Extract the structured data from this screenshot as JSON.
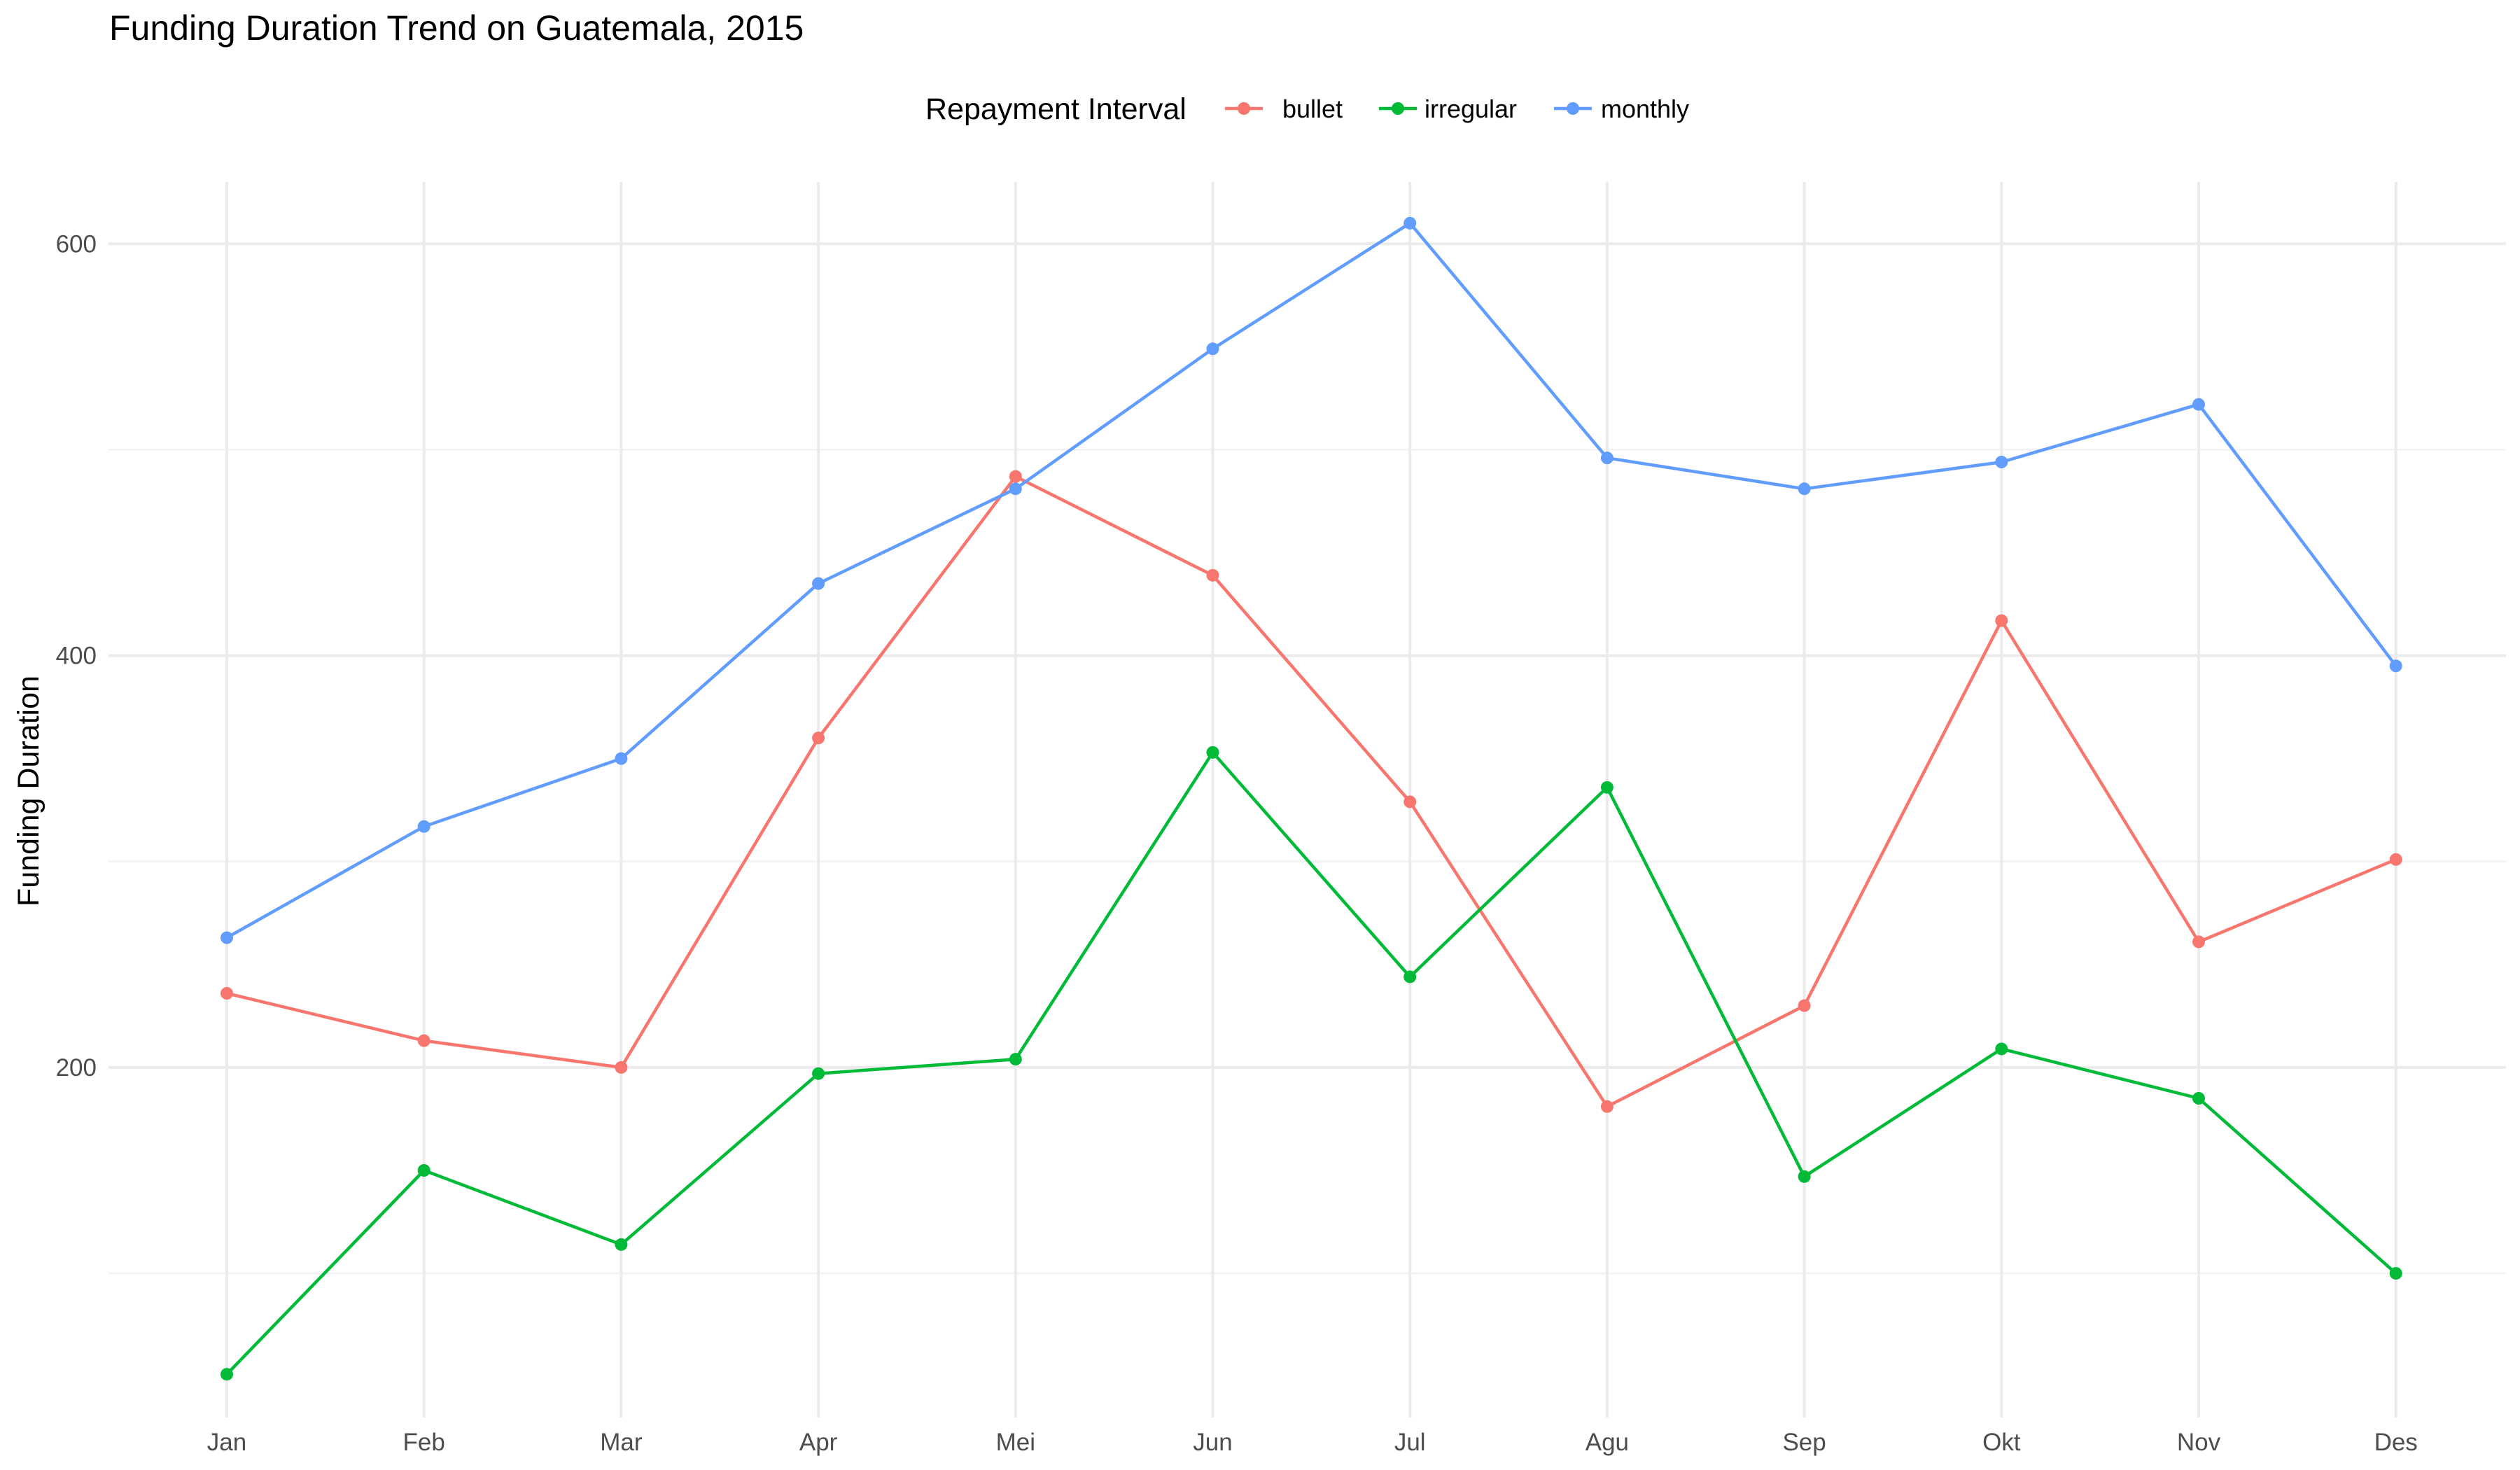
{
  "chart_data": {
    "type": "line",
    "title": "Funding Duration Trend on Guatemala, 2015",
    "xlabel": "",
    "ylabel": "Funding Duration",
    "legend_title": "Repayment Interval",
    "legend_position": "top",
    "grid": true,
    "categories": [
      "Jan",
      "Feb",
      "Mar",
      "Apr",
      "Mei",
      "Jun",
      "Jul",
      "Agu",
      "Sep",
      "Okt",
      "Nov",
      "Des"
    ],
    "ylim": [
      30,
      630
    ],
    "yticks": [
      200,
      400,
      600
    ],
    "series": [
      {
        "name": "bullet",
        "color": "#F8766D",
        "values": [
          236,
          213,
          200,
          360,
          487,
          439,
          329,
          181,
          230,
          417,
          261,
          301
        ]
      },
      {
        "name": "irregular",
        "color": "#00BA38",
        "values": [
          51,
          150,
          114,
          197,
          204,
          353,
          244,
          336,
          147,
          209,
          185,
          100
        ]
      },
      {
        "name": "monthly",
        "color": "#619CFF",
        "values": [
          263,
          317,
          350,
          435,
          481,
          549,
          610,
          496,
          481,
          494,
          522,
          395
        ]
      }
    ]
  }
}
